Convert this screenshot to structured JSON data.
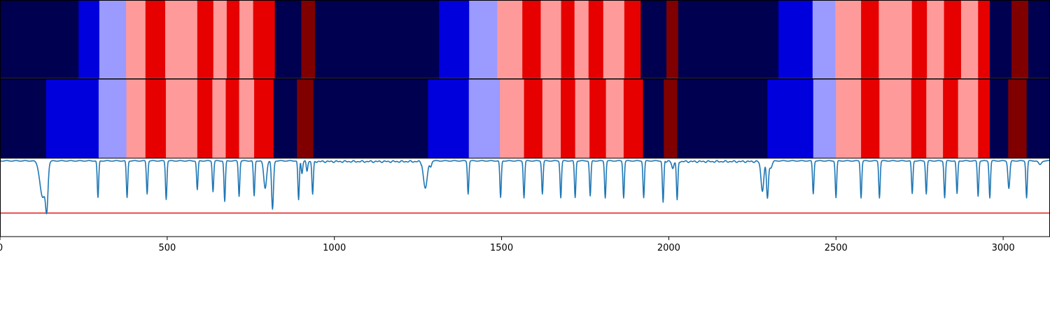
{
  "chart_data": {
    "type": "heatmap",
    "title": "",
    "xlabel": "",
    "ylabel": "",
    "xlim": [
      0,
      3140
    ],
    "xticks": [
      0,
      500,
      1000,
      1500,
      2000,
      2500,
      3000
    ],
    "xtick_labels": [
      "0",
      "500",
      "1000",
      "1500",
      "2000",
      "2500",
      "3000"
    ],
    "grid": false,
    "legend": "none",
    "colors": {
      "navy": "#000050",
      "blue": "#0000dd",
      "lightblue": "#9a9aff",
      "pink": "#ff9a9a",
      "red": "#e60000",
      "darkred": "#800000",
      "line": "#1f77b4",
      "threshold": "#e31a1c"
    },
    "segment_rows": [
      {
        "name": "row-1",
        "segments": [
          {
            "start": 0,
            "end": 235,
            "color": "navy"
          },
          {
            "start": 235,
            "end": 297,
            "color": "blue"
          },
          {
            "start": 297,
            "end": 377,
            "color": "lightblue"
          },
          {
            "start": 377,
            "end": 435,
            "color": "pink"
          },
          {
            "start": 435,
            "end": 494,
            "color": "red"
          },
          {
            "start": 494,
            "end": 590,
            "color": "pink"
          },
          {
            "start": 590,
            "end": 638,
            "color": "red"
          },
          {
            "start": 638,
            "end": 678,
            "color": "pink"
          },
          {
            "start": 678,
            "end": 716,
            "color": "red"
          },
          {
            "start": 716,
            "end": 757,
            "color": "pink"
          },
          {
            "start": 757,
            "end": 822,
            "color": "red"
          },
          {
            "start": 822,
            "end": 901,
            "color": "navy"
          },
          {
            "start": 901,
            "end": 942,
            "color": "darkred"
          },
          {
            "start": 942,
            "end": 1313,
            "color": "navy"
          },
          {
            "start": 1313,
            "end": 1403,
            "color": "blue"
          },
          {
            "start": 1403,
            "end": 1487,
            "color": "lightblue"
          },
          {
            "start": 1487,
            "end": 1562,
            "color": "pink"
          },
          {
            "start": 1562,
            "end": 1617,
            "color": "red"
          },
          {
            "start": 1617,
            "end": 1678,
            "color": "pink"
          },
          {
            "start": 1678,
            "end": 1718,
            "color": "red"
          },
          {
            "start": 1718,
            "end": 1760,
            "color": "pink"
          },
          {
            "start": 1760,
            "end": 1804,
            "color": "red"
          },
          {
            "start": 1804,
            "end": 1867,
            "color": "pink"
          },
          {
            "start": 1867,
            "end": 1916,
            "color": "red"
          },
          {
            "start": 1916,
            "end": 1993,
            "color": "navy"
          },
          {
            "start": 1993,
            "end": 2028,
            "color": "darkred"
          },
          {
            "start": 2028,
            "end": 2328,
            "color": "navy"
          },
          {
            "start": 2328,
            "end": 2430,
            "color": "blue"
          },
          {
            "start": 2430,
            "end": 2498,
            "color": "lightblue"
          },
          {
            "start": 2498,
            "end": 2575,
            "color": "pink"
          },
          {
            "start": 2575,
            "end": 2628,
            "color": "red"
          },
          {
            "start": 2628,
            "end": 2727,
            "color": "pink"
          },
          {
            "start": 2727,
            "end": 2772,
            "color": "red"
          },
          {
            "start": 2772,
            "end": 2823,
            "color": "pink"
          },
          {
            "start": 2823,
            "end": 2874,
            "color": "red"
          },
          {
            "start": 2874,
            "end": 2925,
            "color": "pink"
          },
          {
            "start": 2925,
            "end": 2960,
            "color": "red"
          },
          {
            "start": 2960,
            "end": 3025,
            "color": "navy"
          },
          {
            "start": 3025,
            "end": 3075,
            "color": "darkred"
          },
          {
            "start": 3075,
            "end": 3140,
            "color": "navy"
          }
        ]
      },
      {
        "name": "row-2",
        "segments": [
          {
            "start": 0,
            "end": 138,
            "color": "navy"
          },
          {
            "start": 138,
            "end": 295,
            "color": "blue"
          },
          {
            "start": 295,
            "end": 378,
            "color": "lightblue"
          },
          {
            "start": 378,
            "end": 435,
            "color": "pink"
          },
          {
            "start": 435,
            "end": 496,
            "color": "red"
          },
          {
            "start": 496,
            "end": 590,
            "color": "pink"
          },
          {
            "start": 590,
            "end": 635,
            "color": "red"
          },
          {
            "start": 635,
            "end": 675,
            "color": "pink"
          },
          {
            "start": 675,
            "end": 715,
            "color": "red"
          },
          {
            "start": 715,
            "end": 760,
            "color": "pink"
          },
          {
            "start": 760,
            "end": 818,
            "color": "red"
          },
          {
            "start": 818,
            "end": 888,
            "color": "navy"
          },
          {
            "start": 888,
            "end": 937,
            "color": "darkred"
          },
          {
            "start": 937,
            "end": 1280,
            "color": "navy"
          },
          {
            "start": 1280,
            "end": 1402,
            "color": "blue"
          },
          {
            "start": 1402,
            "end": 1495,
            "color": "lightblue"
          },
          {
            "start": 1495,
            "end": 1567,
            "color": "pink"
          },
          {
            "start": 1567,
            "end": 1622,
            "color": "red"
          },
          {
            "start": 1622,
            "end": 1677,
            "color": "pink"
          },
          {
            "start": 1677,
            "end": 1720,
            "color": "red"
          },
          {
            "start": 1720,
            "end": 1763,
            "color": "pink"
          },
          {
            "start": 1763,
            "end": 1812,
            "color": "red"
          },
          {
            "start": 1812,
            "end": 1865,
            "color": "pink"
          },
          {
            "start": 1865,
            "end": 1923,
            "color": "red"
          },
          {
            "start": 1923,
            "end": 1985,
            "color": "navy"
          },
          {
            "start": 1985,
            "end": 2025,
            "color": "darkred"
          },
          {
            "start": 2025,
            "end": 2295,
            "color": "navy"
          },
          {
            "start": 2295,
            "end": 2432,
            "color": "blue"
          },
          {
            "start": 2432,
            "end": 2500,
            "color": "lightblue"
          },
          {
            "start": 2500,
            "end": 2575,
            "color": "pink"
          },
          {
            "start": 2575,
            "end": 2630,
            "color": "red"
          },
          {
            "start": 2630,
            "end": 2725,
            "color": "pink"
          },
          {
            "start": 2725,
            "end": 2770,
            "color": "red"
          },
          {
            "start": 2770,
            "end": 2820,
            "color": "pink"
          },
          {
            "start": 2820,
            "end": 2865,
            "color": "red"
          },
          {
            "start": 2865,
            "end": 2925,
            "color": "pink"
          },
          {
            "start": 2925,
            "end": 2960,
            "color": "red"
          },
          {
            "start": 2960,
            "end": 3015,
            "color": "navy"
          },
          {
            "start": 3015,
            "end": 3070,
            "color": "darkred"
          },
          {
            "start": 3070,
            "end": 3140,
            "color": "navy"
          }
        ]
      }
    ],
    "signal": {
      "ylim": [
        0,
        1
      ],
      "baseline": 0.97,
      "threshold": 0.3,
      "noise_regions": [
        [
          900,
          1260
        ],
        [
          1990,
          2290
        ]
      ],
      "dips": [
        [
          128,
          0.5,
          12
        ],
        [
          140,
          0.48,
          5
        ],
        [
          293,
          0.5,
          3
        ],
        [
          380,
          0.5,
          3
        ],
        [
          440,
          0.55,
          3
        ],
        [
          497,
          0.48,
          3
        ],
        [
          590,
          0.6,
          3
        ],
        [
          637,
          0.58,
          3
        ],
        [
          672,
          0.45,
          3
        ],
        [
          715,
          0.52,
          3
        ],
        [
          760,
          0.52,
          3
        ],
        [
          793,
          0.62,
          6
        ],
        [
          815,
          0.35,
          4
        ],
        [
          893,
          0.47,
          3
        ],
        [
          903,
          0.82,
          3
        ],
        [
          918,
          0.85,
          3
        ],
        [
          935,
          0.55,
          3
        ],
        [
          1272,
          0.62,
          8
        ],
        [
          1288,
          0.9,
          4
        ],
        [
          1400,
          0.55,
          3
        ],
        [
          1497,
          0.5,
          3
        ],
        [
          1567,
          0.5,
          3
        ],
        [
          1622,
          0.55,
          3
        ],
        [
          1677,
          0.5,
          3
        ],
        [
          1720,
          0.5,
          3
        ],
        [
          1765,
          0.52,
          3
        ],
        [
          1810,
          0.5,
          3
        ],
        [
          1865,
          0.5,
          3
        ],
        [
          1925,
          0.5,
          3
        ],
        [
          1983,
          0.44,
          3
        ],
        [
          2012,
          0.88,
          4
        ],
        [
          2025,
          0.47,
          3
        ],
        [
          2280,
          0.6,
          6
        ],
        [
          2295,
          0.5,
          4
        ],
        [
          2305,
          0.88,
          6
        ],
        [
          2432,
          0.55,
          3
        ],
        [
          2500,
          0.5,
          3
        ],
        [
          2575,
          0.5,
          3
        ],
        [
          2630,
          0.5,
          3
        ],
        [
          2728,
          0.55,
          3
        ],
        [
          2770,
          0.55,
          3
        ],
        [
          2825,
          0.5,
          3
        ],
        [
          2862,
          0.55,
          3
        ],
        [
          2925,
          0.52,
          3
        ],
        [
          2960,
          0.5,
          3
        ],
        [
          3017,
          0.62,
          4
        ],
        [
          3070,
          0.5,
          3
        ],
        [
          3110,
          0.92,
          6
        ]
      ]
    }
  }
}
